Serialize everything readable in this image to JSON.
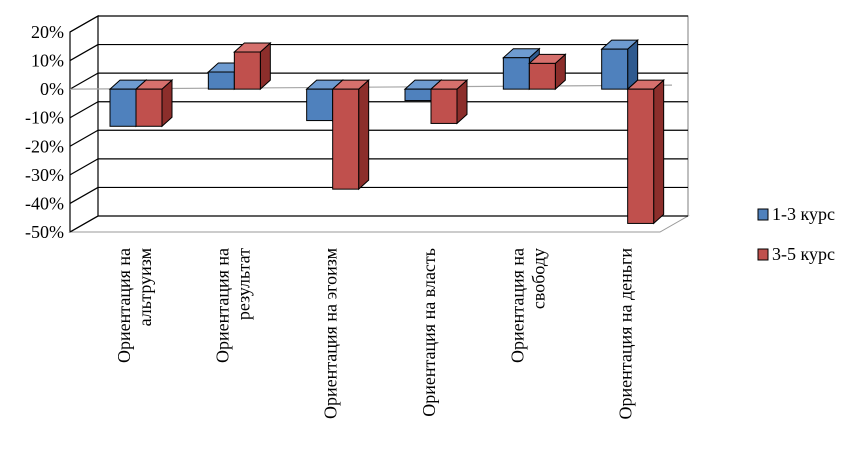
{
  "chart_data": {
    "type": "bar",
    "categories": [
      [
        "Ориентация на",
        "альтруизм"
      ],
      [
        "Ориентация на",
        "результат"
      ],
      [
        "Ориентация на эгоизм"
      ],
      [
        "Ориентация на власть"
      ],
      [
        "Ориентация на",
        "свободу"
      ],
      [
        "Ориентация на деньги"
      ]
    ],
    "series": [
      {
        "name": "1-3 курс",
        "values": [
          -13,
          6,
          -11,
          -4,
          11,
          14
        ]
      },
      {
        "name": "3-5 курс",
        "values": [
          -13,
          13,
          -35,
          -12,
          9,
          -47
        ]
      }
    ],
    "ylim": [
      -50,
      20
    ],
    "yticks": [
      "20%",
      "10%",
      "0%",
      "-10%",
      "-20%",
      "-30%",
      "-40%",
      "-50%"
    ],
    "grid": true,
    "three_d": true,
    "legend_position": "right",
    "colors": {
      "series_1": {
        "front": "#4f81bd",
        "top": "#6e9bd0",
        "side": "#2f5a8f"
      },
      "series_2": {
        "front": "#c0504d",
        "top": "#d6706d",
        "side": "#8c2e2b"
      }
    }
  }
}
